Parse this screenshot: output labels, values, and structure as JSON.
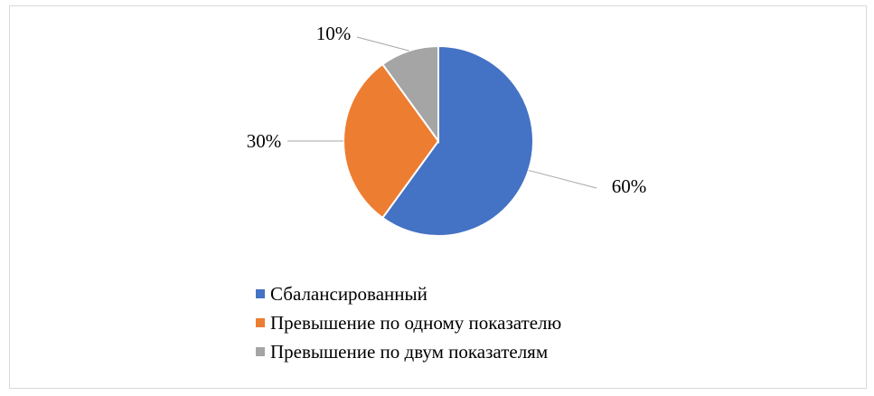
{
  "chart_data": {
    "type": "pie",
    "title": "",
    "categories": [
      "Сбалансированный",
      "Превышение по одному показателю",
      "Превышение по двум показателям"
    ],
    "values": [
      60,
      30,
      10
    ],
    "data_labels": [
      "60%",
      "30%",
      "10%"
    ],
    "colors": [
      "#4472C4",
      "#ED7D31",
      "#A5A5A5"
    ],
    "start_angle": "top, clockwise",
    "legend_position": "bottom",
    "leader_lines": true
  }
}
